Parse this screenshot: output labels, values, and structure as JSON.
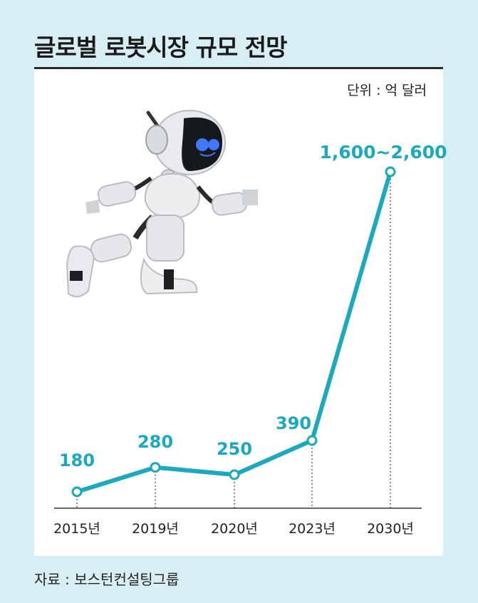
{
  "title": "글로벌 로봇시장 규모 전망",
  "unit": "단위 : 억 달러",
  "source": "자료 : 보스턴컨설팅그룹",
  "colors": {
    "line": "#1aa9bd",
    "panel": "#ffffff",
    "background": "#d7eef5"
  },
  "chart_data": {
    "type": "line",
    "categories": [
      "2015년",
      "2019년",
      "2020년",
      "2023년",
      "2030년"
    ],
    "values": [
      180,
      280,
      250,
      390,
      2600
    ],
    "value_labels": [
      "180",
      "280",
      "250",
      "390",
      "1,600~2,600"
    ],
    "ylabel": "단위 : 억 달러",
    "xlabel": "",
    "grid": false
  }
}
